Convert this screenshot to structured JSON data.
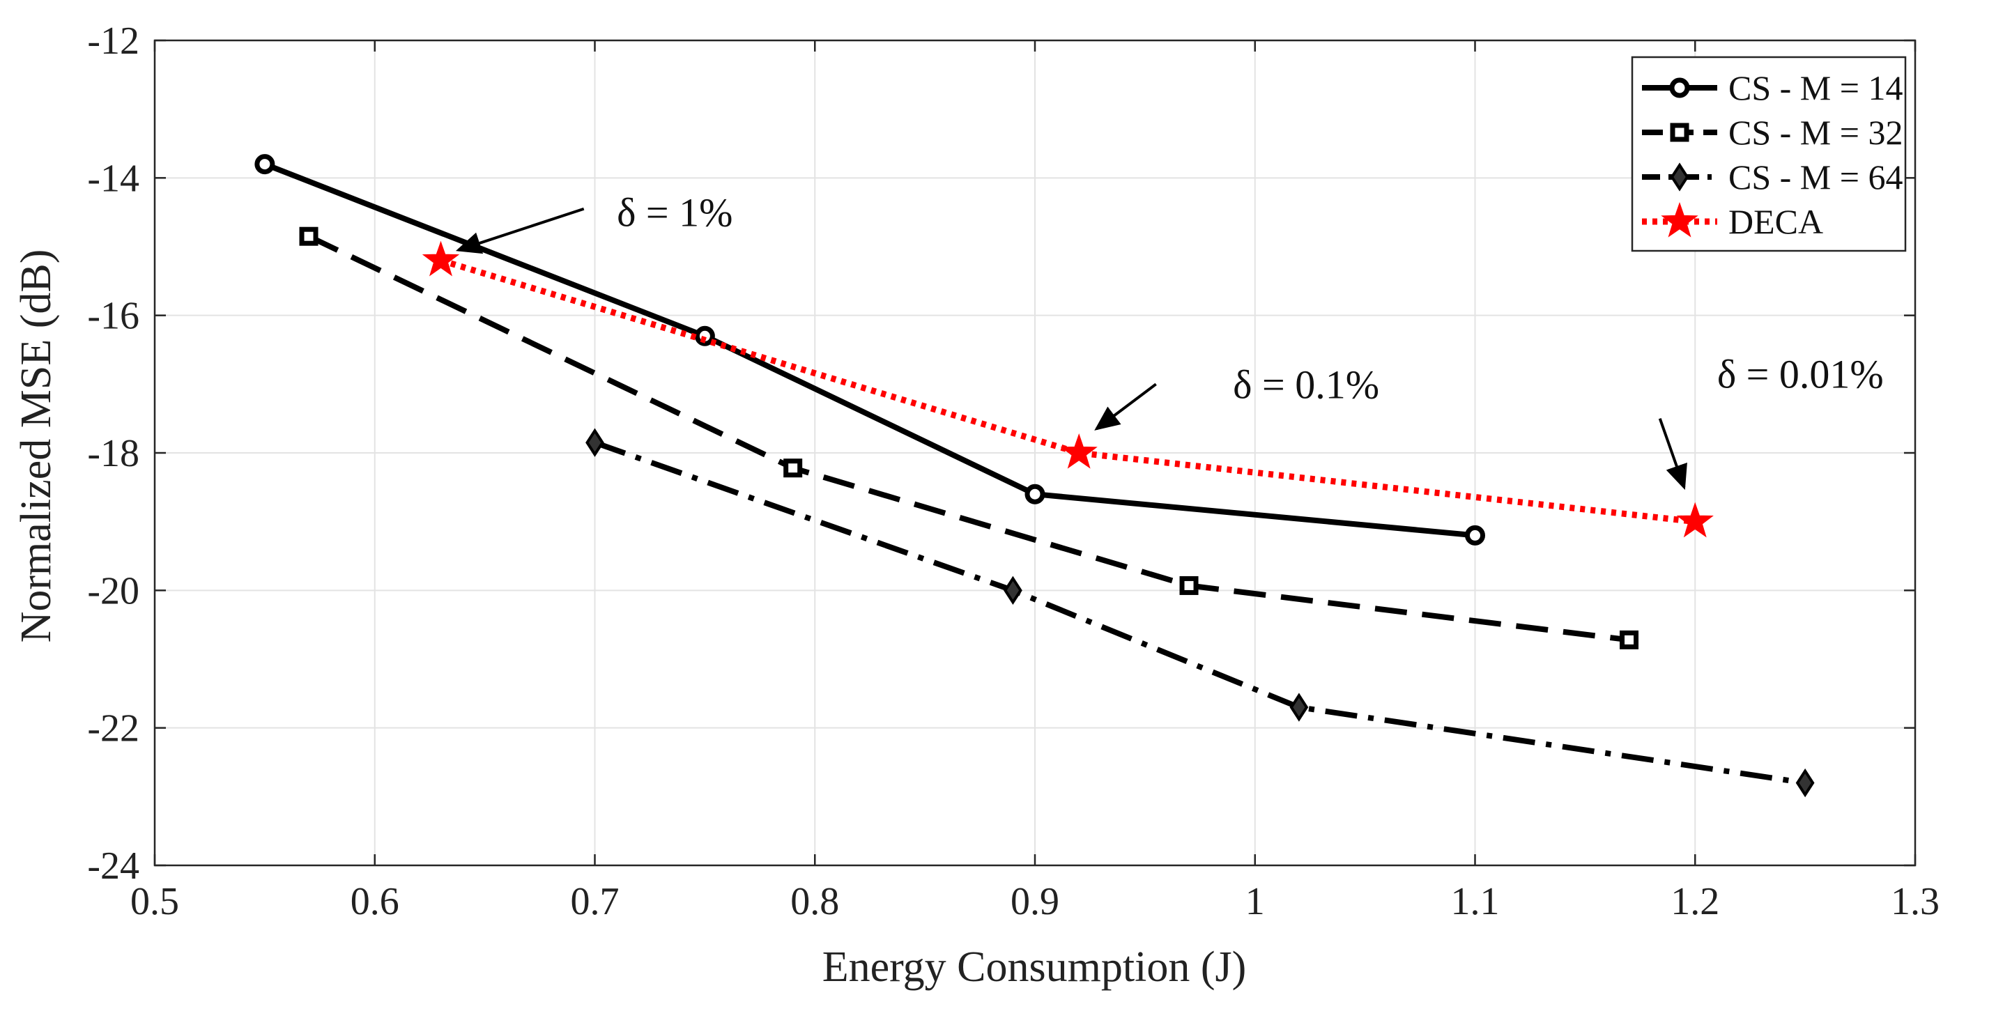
{
  "chart_data": {
    "type": "line",
    "title": "",
    "xlabel": "Energy Consumption (J)",
    "ylabel": "Normalized MSE (dB)",
    "xlim": [
      0.5,
      1.3
    ],
    "ylim": [
      -24,
      -12
    ],
    "xticks": [
      0.5,
      0.6,
      0.7,
      0.8,
      0.9,
      1.0,
      1.1,
      1.2,
      1.3
    ],
    "xtick_labels": [
      "0.5",
      "0.6",
      "0.7",
      "0.8",
      "0.9",
      "1",
      "1.1",
      "1.2",
      "1.3"
    ],
    "yticks": [
      -24,
      -22,
      -20,
      -18,
      -16,
      -14,
      -12
    ],
    "ytick_labels": [
      "-24",
      "-22",
      "-20",
      "-18",
      "-16",
      "-14",
      "-12"
    ],
    "grid": true,
    "legend_position": "top-right",
    "series": [
      {
        "name": "CS - M = 14",
        "color": "#000000",
        "line_style": "solid",
        "marker": "circle",
        "x": [
          0.55,
          0.75,
          0.9,
          1.1
        ],
        "y": [
          -13.8,
          -16.3,
          -18.6,
          -19.2
        ]
      },
      {
        "name": "CS - M = 32",
        "color": "#000000",
        "line_style": "dashed",
        "marker": "square",
        "x": [
          0.57,
          0.79,
          0.97,
          1.17
        ],
        "y": [
          -14.85,
          -18.22,
          -19.93,
          -20.72
        ]
      },
      {
        "name": "CS - M = 64",
        "color": "#000000",
        "line_style": "dashdot",
        "marker": "diamond",
        "x": [
          0.7,
          0.89,
          1.02,
          1.25
        ],
        "y": [
          -17.85,
          -20.0,
          -21.7,
          -22.8
        ]
      },
      {
        "name": "DECA",
        "color": "#ff0000",
        "line_style": "dotted",
        "marker": "star",
        "x": [
          0.63,
          0.92,
          1.2
        ],
        "y": [
          -15.2,
          -18.0,
          -19.0
        ]
      }
    ],
    "annotations": [
      {
        "text": "δ = 1%",
        "text_x": 0.71,
        "text_y": -14.5,
        "arrow_from": [
          0.695,
          -14.45
        ],
        "arrow_to": [
          0.638,
          -15.05
        ]
      },
      {
        "text": "δ = 0.1%",
        "text_x": 0.99,
        "text_y": -17.0,
        "arrow_from": [
          0.955,
          -17.0
        ],
        "arrow_to": [
          0.928,
          -17.65
        ]
      },
      {
        "text": "δ = 0.01%",
        "text_x": 1.21,
        "text_y": -16.85,
        "arrow_from": [
          1.184,
          -17.5
        ],
        "arrow_to": [
          1.195,
          -18.5
        ]
      }
    ]
  }
}
